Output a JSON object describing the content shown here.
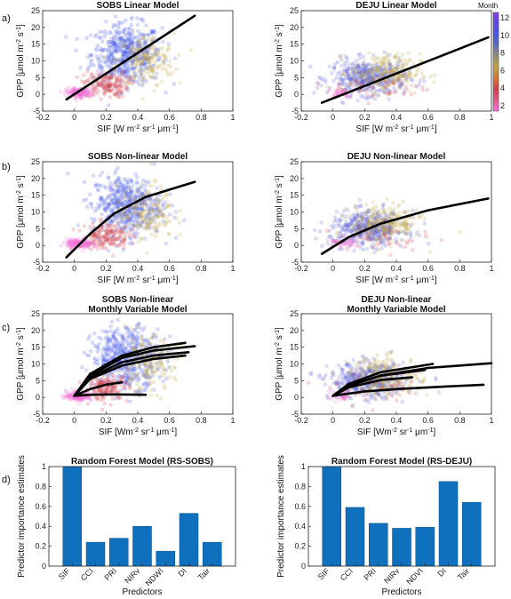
{
  "panel_labels": [
    "a)",
    "b)",
    "c)",
    "d)"
  ],
  "colorbar": {
    "label": "Month",
    "ticks": [
      "12",
      "10",
      "8",
      "6",
      "4",
      "2"
    ],
    "colors": [
      "#ff70e0",
      "#e05a8a",
      "#d0404a",
      "#d2763a",
      "#c0a040",
      "#909070",
      "#6070b8",
      "#4858e8",
      "#6048e0",
      "#8c3ee8"
    ]
  },
  "chart_data": [
    {
      "id": "a-sobs",
      "type": "scatter",
      "title": "SOBS Linear Model",
      "xlabel": "SIF [W m^-2 sr^-1 μm^-1]",
      "ylabel": "GPP [μmol m^-2 s^-1]",
      "xlim": [
        -0.2,
        1
      ],
      "ylim": [
        -5,
        25
      ],
      "xticks": [
        "-0.2",
        "0",
        "0.2",
        "0.4",
        "0.6",
        "0.8",
        "1"
      ],
      "yticks": [
        "-5",
        "0",
        "5",
        "10",
        "15",
        "20",
        "25"
      ],
      "fit_lines": [
        [
          [
            -0.05,
            -1.5
          ],
          [
            0.76,
            23.5
          ]
        ]
      ],
      "clouds": [
        {
          "cx": 0.33,
          "cy": 12,
          "sx": 0.11,
          "sy": 4.5,
          "n": 520,
          "color": "#4a5ae8"
        },
        {
          "cx": 0.45,
          "cy": 10,
          "sx": 0.09,
          "sy": 4,
          "n": 180,
          "color": "#c6a84a"
        },
        {
          "cx": 0.2,
          "cy": 3,
          "sx": 0.07,
          "sy": 2,
          "n": 160,
          "color": "#d0424a"
        },
        {
          "cx": 0.03,
          "cy": 0.5,
          "sx": 0.04,
          "sy": 0.7,
          "n": 160,
          "color": "#f070d8"
        }
      ]
    },
    {
      "id": "a-deju",
      "type": "scatter",
      "title": "DEJU Linear Model",
      "xlabel": "SIF [W m^-2 sr^-1 μm^-1]",
      "ylabel": "GPP [μmol m^-2 s^-1]",
      "xlim": [
        -0.2,
        1
      ],
      "ylim": [
        -5,
        25
      ],
      "xticks": [
        "-0.2",
        "0",
        "0.2",
        "0.4",
        "0.6",
        "0.8",
        "1"
      ],
      "yticks": [
        "-5",
        "0",
        "5",
        "10",
        "15",
        "20",
        "25"
      ],
      "fit_lines": [
        [
          [
            -0.07,
            -2.5
          ],
          [
            0.98,
            17
          ]
        ]
      ],
      "clouds": [
        {
          "cx": 0.22,
          "cy": 5,
          "sx": 0.12,
          "sy": 2.6,
          "n": 420,
          "color": "#5a60d8"
        },
        {
          "cx": 0.33,
          "cy": 6.5,
          "sx": 0.11,
          "sy": 2.8,
          "n": 220,
          "color": "#c0a848"
        },
        {
          "cx": 0.3,
          "cy": 2,
          "sx": 0.15,
          "sy": 2,
          "n": 50,
          "color": "#d04850"
        },
        {
          "cx": 0.05,
          "cy": 0.5,
          "sx": 0.04,
          "sy": 0.8,
          "n": 40,
          "color": "#f070d8"
        }
      ]
    },
    {
      "id": "b-sobs",
      "type": "scatter",
      "title": "SOBS Non-linear Model",
      "xlabel": "SIF [W m^-2 sr^-1 μm^-1]",
      "ylabel": "GPP [μmol m^-2 s^-1]",
      "xlim": [
        -0.2,
        1
      ],
      "ylim": [
        -5,
        25
      ],
      "xticks": [
        "-0.2",
        "0",
        "0.2",
        "0.4",
        "0.6",
        "0.8",
        "1"
      ],
      "yticks": [
        "-5",
        "0",
        "5",
        "10",
        "15",
        "20",
        "25"
      ],
      "fit_lines": [
        [
          [
            -0.05,
            -3.5
          ],
          [
            0.1,
            3.5
          ],
          [
            0.25,
            9.5
          ],
          [
            0.45,
            14.5
          ],
          [
            0.76,
            19
          ]
        ]
      ],
      "clouds": [
        {
          "cx": 0.33,
          "cy": 12,
          "sx": 0.11,
          "sy": 4.5,
          "n": 520,
          "color": "#4a5ae8"
        },
        {
          "cx": 0.45,
          "cy": 10,
          "sx": 0.09,
          "sy": 4,
          "n": 180,
          "color": "#c6a84a"
        },
        {
          "cx": 0.2,
          "cy": 3,
          "sx": 0.07,
          "sy": 2,
          "n": 160,
          "color": "#d0424a"
        },
        {
          "cx": 0.03,
          "cy": 0.5,
          "sx": 0.04,
          "sy": 0.7,
          "n": 160,
          "color": "#f070d8"
        }
      ]
    },
    {
      "id": "b-deju",
      "type": "scatter",
      "title": "DEJU Non-linear Model",
      "xlabel": "SIF [W m^-2 sr^-1 μm^-1]",
      "ylabel": "GPP [μmol m^-2 s^-1]",
      "xlim": [
        -0.2,
        1
      ],
      "ylim": [
        -5,
        25
      ],
      "xticks": [
        "-0.2",
        "0",
        "0.2",
        "0.4",
        "0.6",
        "0.8",
        "1"
      ],
      "yticks": [
        "-5",
        "0",
        "5",
        "10",
        "15",
        "20",
        "25"
      ],
      "fit_lines": [
        [
          [
            -0.07,
            -2.5
          ],
          [
            0.1,
            2.5
          ],
          [
            0.3,
            6.5
          ],
          [
            0.6,
            10.5
          ],
          [
            0.98,
            14
          ]
        ]
      ],
      "clouds": [
        {
          "cx": 0.22,
          "cy": 5,
          "sx": 0.12,
          "sy": 2.6,
          "n": 420,
          "color": "#5a60d8"
        },
        {
          "cx": 0.33,
          "cy": 6.5,
          "sx": 0.11,
          "sy": 2.8,
          "n": 220,
          "color": "#c0a848"
        },
        {
          "cx": 0.3,
          "cy": 2,
          "sx": 0.15,
          "sy": 2,
          "n": 50,
          "color": "#d04850"
        },
        {
          "cx": 0.05,
          "cy": 0.5,
          "sx": 0.04,
          "sy": 0.8,
          "n": 40,
          "color": "#f070d8"
        }
      ]
    },
    {
      "id": "c-sobs",
      "type": "scatter",
      "title": "SOBS Non-linear",
      "subtitle": "Monthly Variable Model",
      "xlabel": "SIF [Wm^-2 sr^-1 μm^-1]",
      "ylabel": "GPP [μmol m^-2 s^-1]",
      "xlim": [
        -0.2,
        1
      ],
      "ylim": [
        -5,
        25
      ],
      "xticks": [
        "-0.2",
        "0",
        "0.2",
        "0.4",
        "0.6",
        "0.8",
        "1"
      ],
      "yticks": [
        "-5",
        "0",
        "5",
        "10",
        "15",
        "20",
        "25"
      ],
      "fit_lines": [
        [
          [
            0,
            0.5
          ],
          [
            0.1,
            7
          ],
          [
            0.3,
            12.5
          ],
          [
            0.5,
            15
          ],
          [
            0.7,
            16.3
          ]
        ],
        [
          [
            0,
            0.5
          ],
          [
            0.1,
            6.5
          ],
          [
            0.3,
            11.8
          ],
          [
            0.5,
            14
          ],
          [
            0.76,
            15.3
          ]
        ],
        [
          [
            0,
            0.5
          ],
          [
            0.1,
            6
          ],
          [
            0.3,
            10.5
          ],
          [
            0.5,
            12.5
          ],
          [
            0.72,
            13.5
          ]
        ],
        [
          [
            0,
            0.5
          ],
          [
            0.1,
            5.5
          ],
          [
            0.3,
            9.5
          ],
          [
            0.5,
            11.5
          ],
          [
            0.7,
            12.5
          ]
        ],
        [
          [
            0,
            0.5
          ],
          [
            0.1,
            2.5
          ],
          [
            0.2,
            3.8
          ],
          [
            0.3,
            4.5
          ]
        ],
        [
          [
            0,
            0.5
          ],
          [
            0.1,
            0.8
          ],
          [
            0.25,
            0.9
          ],
          [
            0.45,
            0.8
          ]
        ]
      ],
      "clouds": [
        {
          "cx": 0.33,
          "cy": 12,
          "sx": 0.11,
          "sy": 4.5,
          "n": 520,
          "color": "#4a5ae8"
        },
        {
          "cx": 0.45,
          "cy": 10,
          "sx": 0.09,
          "sy": 4,
          "n": 180,
          "color": "#c6a84a"
        },
        {
          "cx": 0.2,
          "cy": 3,
          "sx": 0.07,
          "sy": 2,
          "n": 160,
          "color": "#d0424a"
        },
        {
          "cx": 0.03,
          "cy": 0.5,
          "sx": 0.04,
          "sy": 0.7,
          "n": 160,
          "color": "#f070d8"
        }
      ]
    },
    {
      "id": "c-deju",
      "type": "scatter",
      "title": "DEJU Non-linear",
      "subtitle": "Monthly Variable Model",
      "xlabel": "SIF [Wm^-2 sr^-1 μm^-1]",
      "ylabel": "GPP [μmol m^-2 s^-1]",
      "xlim": [
        -0.2,
        1
      ],
      "ylim": [
        -5,
        25
      ],
      "xticks": [
        "-0.2",
        "0",
        "0.2",
        "0.4",
        "0.6",
        "0.8",
        "1"
      ],
      "yticks": [
        "-5",
        "0",
        "5",
        "10",
        "15",
        "20",
        "25"
      ],
      "fit_lines": [
        [
          [
            0,
            0.5
          ],
          [
            0.1,
            3.5
          ],
          [
            0.3,
            6.5
          ],
          [
            0.6,
            8.8
          ],
          [
            1.0,
            10.2
          ]
        ],
        [
          [
            0,
            0.5
          ],
          [
            0.1,
            4
          ],
          [
            0.3,
            7.5
          ],
          [
            0.63,
            10
          ]
        ],
        [
          [
            0,
            0.5
          ],
          [
            0.1,
            3.5
          ],
          [
            0.3,
            6.5
          ],
          [
            0.58,
            8.2
          ]
        ],
        [
          [
            0,
            0.5
          ],
          [
            0.1,
            3
          ],
          [
            0.3,
            5.2
          ],
          [
            0.5,
            6
          ]
        ],
        [
          [
            0,
            0.5
          ],
          [
            0.2,
            1.8
          ],
          [
            0.4,
            2.5
          ],
          [
            0.6,
            3
          ],
          [
            0.95,
            3.8
          ]
        ]
      ],
      "clouds": [
        {
          "cx": 0.22,
          "cy": 5,
          "sx": 0.12,
          "sy": 2.6,
          "n": 420,
          "color": "#5a60d8"
        },
        {
          "cx": 0.33,
          "cy": 6.5,
          "sx": 0.11,
          "sy": 2.8,
          "n": 220,
          "color": "#c0a848"
        },
        {
          "cx": 0.3,
          "cy": 2,
          "sx": 0.15,
          "sy": 2,
          "n": 50,
          "color": "#d04850"
        },
        {
          "cx": 0.05,
          "cy": 0.5,
          "sx": 0.04,
          "sy": 0.8,
          "n": 40,
          "color": "#f070d8"
        }
      ]
    },
    {
      "id": "d-sobs",
      "type": "bar",
      "title": "Random Forest Model (RS-SOBS)",
      "xlabel": "Predictors",
      "ylabel": "Predictor importance estimates",
      "categories": [
        "SIF",
        "CCI",
        "PRI",
        "NIRv",
        "NDWI",
        "DI",
        "Tair"
      ],
      "values": [
        1.0,
        0.24,
        0.28,
        0.4,
        0.15,
        0.53,
        0.24
      ],
      "ylim": [
        0,
        1
      ],
      "yticks": [
        "0",
        "0.2",
        "0.4",
        "0.6",
        "0.8",
        "1"
      ],
      "color": "#0f71bd"
    },
    {
      "id": "d-deju",
      "type": "bar",
      "title": "Random Forest Model (RS-DEJU)",
      "xlabel": "Predictors",
      "ylabel": "Predictor importance estimates",
      "categories": [
        "SIF",
        "CCI",
        "PRI",
        "NIRv",
        "NDVI",
        "DI",
        "Tair"
      ],
      "values": [
        1.0,
        0.59,
        0.43,
        0.38,
        0.39,
        0.85,
        0.64
      ],
      "ylim": [
        0,
        1
      ],
      "yticks": [
        "0",
        "0.2",
        "0.4",
        "0.6",
        "0.8",
        "1"
      ],
      "color": "#0f71bd"
    }
  ]
}
